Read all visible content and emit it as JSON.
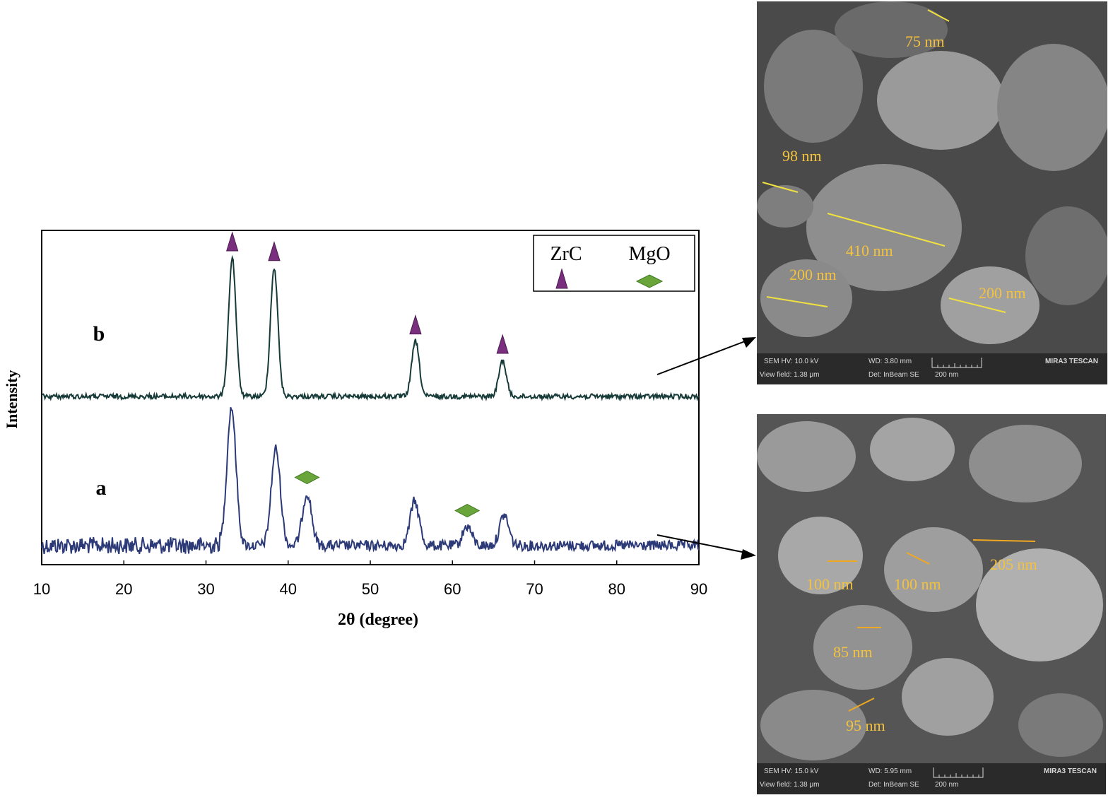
{
  "chart_data": {
    "type": "line",
    "xlabel": "2θ (degree)",
    "ylabel": "Intensity",
    "xlim": [
      10,
      90
    ],
    "xticks": [
      "10",
      "20",
      "30",
      "40",
      "50",
      "60",
      "70",
      "80",
      "90"
    ],
    "grid": false,
    "legend": {
      "placement": "top-right",
      "entries": [
        {
          "name": "ZrC",
          "marker": "triangle",
          "color": "#7a2f7e"
        },
        {
          "name": "MgO",
          "marker": "diamond",
          "color": "#6aa53c"
        }
      ]
    },
    "series": [
      {
        "name": "a",
        "color": "#2d3a78",
        "peaks": [
          [
            33.1,
            100
          ],
          [
            38.5,
            70
          ],
          [
            42.3,
            38
          ],
          [
            55.4,
            32
          ],
          [
            61.8,
            14
          ],
          [
            66.3,
            22
          ]
        ],
        "markers": [
          {
            "x": 42.3,
            "phase": "MgO"
          },
          {
            "x": 61.8,
            "phase": "MgO"
          }
        ]
      },
      {
        "name": "b",
        "color": "#163a38",
        "peaks": [
          [
            33.2,
            100
          ],
          [
            38.3,
            93
          ],
          [
            55.5,
            40
          ],
          [
            66.1,
            26
          ]
        ],
        "markers": [
          {
            "x": 33.2,
            "phase": "ZrC"
          },
          {
            "x": 38.3,
            "phase": "ZrC"
          },
          {
            "x": 55.5,
            "phase": "ZrC"
          },
          {
            "x": 66.1,
            "phase": "ZrC"
          }
        ]
      }
    ]
  },
  "sem_images": [
    {
      "series": "b",
      "measurements": [
        "75 nm",
        "98 nm",
        "410 nm",
        "200 nm",
        "200 nm"
      ],
      "info": {
        "hv": "SEM HV: 10.0 kV",
        "wd": "WD: 3.80 mm",
        "brand": "MIRA3 TESCAN",
        "view": "View field: 1.38 μm",
        "det": "Det: InBeam SE",
        "scale": "200 nm"
      }
    },
    {
      "series": "a",
      "measurements": [
        "100 nm",
        "100 nm",
        "205 nm",
        "85 nm",
        "95 nm"
      ],
      "info": {
        "hv": "SEM HV: 15.0 kV",
        "wd": "WD: 5.95 mm",
        "brand": "MIRA3 TESCAN",
        "view": "View field: 1.38 μm",
        "det": "Det: InBeam SE",
        "scale": "200 nm"
      }
    }
  ]
}
